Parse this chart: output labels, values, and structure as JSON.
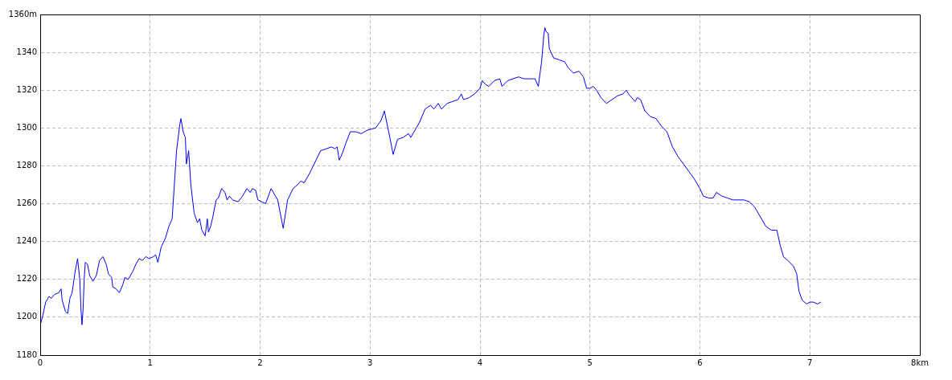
{
  "chart_data": {
    "type": "line",
    "x": [
      0,
      0.02,
      0.05,
      0.08,
      0.1,
      0.13,
      0.17,
      0.19,
      0.2,
      0.23,
      0.25,
      0.27,
      0.29,
      0.32,
      0.34,
      0.36,
      0.37,
      0.38,
      0.39,
      0.4,
      0.41,
      0.43,
      0.45,
      0.48,
      0.51,
      0.54,
      0.57,
      0.6,
      0.62,
      0.65,
      0.66,
      0.69,
      0.72,
      0.75,
      0.77,
      0.8,
      0.84,
      0.87,
      0.9,
      0.93,
      0.96,
      0.99,
      1.03,
      1.05,
      1.07,
      1.1,
      1.14,
      1.17,
      1.2,
      1.22,
      1.24,
      1.27,
      1.28,
      1.3,
      1.32,
      1.33,
      1.35,
      1.37,
      1.4,
      1.43,
      1.45,
      1.47,
      1.5,
      1.52,
      1.53,
      1.55,
      1.57,
      1.6,
      1.62,
      1.65,
      1.68,
      1.7,
      1.72,
      1.75,
      1.8,
      1.84,
      1.88,
      1.91,
      1.93,
      1.96,
      1.98,
      2.05,
      2.1,
      2.16,
      2.21,
      2.25,
      2.3,
      2.34,
      2.37,
      2.4,
      2.45,
      2.5,
      2.55,
      2.6,
      2.65,
      2.68,
      2.7,
      2.72,
      2.75,
      2.78,
      2.82,
      2.87,
      2.92,
      2.98,
      3.05,
      3.1,
      3.13,
      3.18,
      3.21,
      3.25,
      3.3,
      3.35,
      3.37,
      3.42,
      3.45,
      3.5,
      3.55,
      3.58,
      3.62,
      3.65,
      3.7,
      3.75,
      3.8,
      3.83,
      3.85,
      3.9,
      3.95,
      4.0,
      4.02,
      4.05,
      4.08,
      4.13,
      4.18,
      4.2,
      4.25,
      4.3,
      4.35,
      4.4,
      4.45,
      4.5,
      4.53,
      4.56,
      4.58,
      4.59,
      4.6,
      4.62,
      4.63,
      4.67,
      4.72,
      4.77,
      4.8,
      4.85,
      4.9,
      4.94,
      4.97,
      5.0,
      5.03,
      5.06,
      5.1,
      5.15,
      5.2,
      5.25,
      5.3,
      5.33,
      5.35,
      5.38,
      5.41,
      5.43,
      5.46,
      5.5,
      5.55,
      5.6,
      5.65,
      5.7,
      5.75,
      5.8,
      5.85,
      5.9,
      5.95,
      6.0,
      6.03,
      6.08,
      6.12,
      6.15,
      6.2,
      6.25,
      6.3,
      6.4,
      6.45,
      6.5,
      6.55,
      6.6,
      6.65,
      6.7,
      6.73,
      6.76,
      6.8,
      6.85,
      6.88,
      6.9,
      6.93,
      6.97,
      7.0,
      7.03,
      7.07,
      7.1
    ],
    "series": [
      {
        "color": "#0000ff",
        "values": [
          1196,
          1200,
          1208,
          1211,
          1210,
          1212,
          1213,
          1215,
          1209,
          1203,
          1202,
          1210,
          1213,
          1225,
          1231,
          1220,
          1205,
          1196,
          1204,
          1220,
          1229,
          1228,
          1222,
          1219,
          1222,
          1230,
          1232,
          1228,
          1223,
          1221,
          1216,
          1215,
          1213,
          1217,
          1221,
          1220,
          1224,
          1228,
          1231,
          1230,
          1232,
          1231,
          1232,
          1233,
          1229,
          1237,
          1242,
          1248,
          1252,
          1270,
          1288,
          1302,
          1305,
          1298,
          1295,
          1281,
          1288,
          1270,
          1255,
          1250,
          1252,
          1246,
          1243,
          1252,
          1245,
          1248,
          1253,
          1262,
          1263,
          1268,
          1266,
          1262,
          1264,
          1262,
          1261,
          1264,
          1268,
          1266,
          1268,
          1267,
          1262,
          1260,
          1268,
          1262,
          1247,
          1262,
          1268,
          1270,
          1272,
          1271,
          1276,
          1282,
          1288,
          1289,
          1290,
          1289,
          1290,
          1283,
          1287,
          1292,
          1298,
          1298,
          1297,
          1299,
          1300,
          1304,
          1309,
          1295,
          1286,
          1294,
          1295,
          1297,
          1295,
          1300,
          1303,
          1310,
          1312,
          1310,
          1313,
          1310,
          1313,
          1314,
          1315,
          1318,
          1315,
          1316,
          1318,
          1321,
          1325,
          1323,
          1322,
          1325,
          1326,
          1322,
          1325,
          1326,
          1327,
          1326,
          1326,
          1326,
          1322,
          1335,
          1349,
          1353,
          1351,
          1350,
          1342,
          1337,
          1336,
          1335,
          1332,
          1329,
          1330,
          1327,
          1321,
          1321,
          1322,
          1320,
          1316,
          1313,
          1315,
          1317,
          1318,
          1320,
          1318,
          1316,
          1314,
          1316,
          1315,
          1309,
          1306,
          1305,
          1301,
          1298,
          1290,
          1285,
          1281,
          1277,
          1273,
          1268,
          1264,
          1263,
          1263,
          1266,
          1264,
          1263,
          1262,
          1262,
          1261,
          1258,
          1253,
          1248,
          1246,
          1246,
          1238,
          1232,
          1230,
          1227,
          1223,
          1214,
          1209,
          1207,
          1208,
          1208,
          1207,
          1208
        ]
      }
    ],
    "xlim": [
      0,
      8
    ],
    "xticks": [
      0,
      1,
      2,
      3,
      4,
      5,
      6,
      7,
      {
        "value": 8,
        "label": "8km"
      }
    ],
    "ylim": [
      1180,
      1360
    ],
    "yticks": [
      1180,
      1200,
      1220,
      1240,
      1260,
      1280,
      1300,
      1320,
      1340,
      {
        "value": 1360,
        "label": "1360m"
      }
    ],
    "grid": true,
    "line_style": "solid",
    "marker": "none"
  }
}
